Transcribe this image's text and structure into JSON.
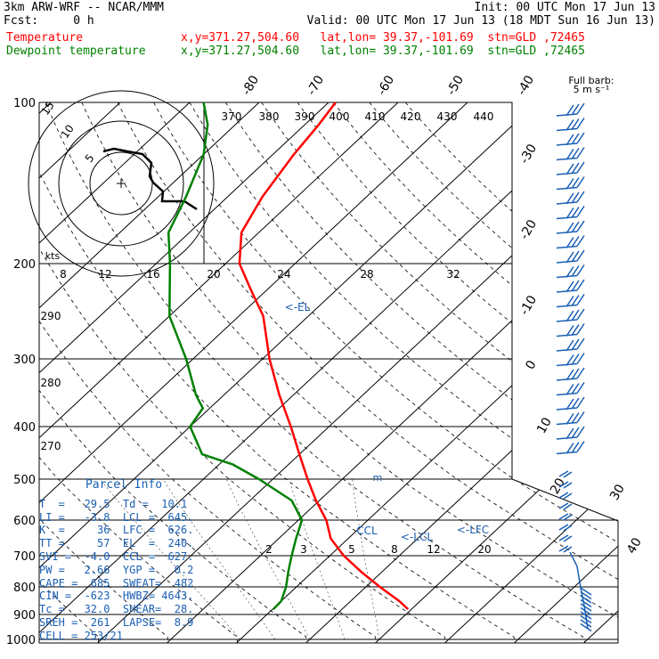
{
  "header": {
    "line1_left": "3km ARW-WRF -- NCAR/MMM",
    "line1_right": "Init: 00 UTC Mon 17 Jun 13",
    "line2_left": "Fcst:     0 h",
    "line2_right": "Valid: 00 UTC Mon 17 Jun 13 (18 MDT Sun 16 Jun 13)",
    "temp_label": "Temperature",
    "temp_loc": "x,y=371.27,504.60   lat,lon= 39.37,-101.69  stn=GLD ,72465",
    "dew_label": "Dewpoint temperature",
    "dew_loc": "x,y=371.27,504.60   lat,lon= 39.37,-101.69  stn=GLD ,72465"
  },
  "wind_key": {
    "title": "Full barb:",
    "value": "5 m s⁻¹"
  },
  "parcel_info": {
    "title": "Parcel Info",
    "rows": [
      "T  =   29.5  Td =  10.1",
      "LI =   -3.8  LCL =  645.",
      "K  =     36  LFC =  626.",
      "TT =     57  EL  =  240.",
      "SVI =  -4.0  CCL =  627.",
      "PW =   2.66  YGP =   0.2",
      "CAPE =  685  SWEAT=  482",
      "CIN =  -623  HWBZ= 4643.",
      "Tc =   32.0  SHEAR=  28.",
      "SREH =  261  LAPSE=  8.9",
      "CELL = 253/21"
    ]
  },
  "annotations": {
    "el": "<-EL",
    "lcl": "<-LCL",
    "lfc": "<-LFC",
    "ccl": "CCL"
  },
  "hodograph": {
    "unit": "kts",
    "rings": [
      "5",
      "10",
      "15"
    ]
  },
  "colors": {
    "temperature": "#ff0000",
    "dewpoint": "#008000",
    "blue": "#1a5fb4",
    "black": "#000000"
  },
  "chart_data": {
    "type": "line",
    "y_axis": "pressure (hPa)",
    "pressure_ticks": [
      100,
      200,
      300,
      400,
      500,
      600,
      700,
      800,
      900,
      1000
    ],
    "isotherm_labels": [
      "-80",
      "-70",
      "-60",
      "-50",
      "-40",
      "-30",
      "-20",
      "-10",
      "0",
      "10",
      "20",
      "30",
      "40"
    ],
    "theta_labels": [
      "370",
      "380",
      "390",
      "400",
      "410",
      "420",
      "430",
      "440"
    ],
    "theta_left_labels": [
      "290",
      "280",
      "270"
    ],
    "mixing_ratio_labels": [
      "8",
      "12",
      "16",
      "20",
      "24",
      "28",
      "32"
    ],
    "mixing_ratio_low_labels": [
      "2",
      "3",
      "5",
      "8",
      "12",
      "20"
    ],
    "series": [
      {
        "name": "Temperature",
        "points": [
          [
            880,
            29.5
          ],
          [
            850,
            27
          ],
          [
            800,
            22
          ],
          [
            750,
            17
          ],
          [
            700,
            12
          ],
          [
            650,
            7.5
          ],
          [
            600,
            4
          ],
          [
            550,
            -0.5
          ],
          [
            500,
            -5
          ],
          [
            450,
            -10
          ],
          [
            400,
            -15.5
          ],
          [
            350,
            -22
          ],
          [
            300,
            -29
          ],
          [
            250,
            -36.5
          ],
          [
            225,
            -42
          ],
          [
            200,
            -48
          ],
          [
            175,
            -52.5
          ],
          [
            150,
            -55
          ],
          [
            125,
            -57
          ],
          [
            110,
            -58
          ],
          [
            100,
            -59
          ]
        ]
      },
      {
        "name": "Dewpoint temperature",
        "points": [
          [
            880,
            10.1
          ],
          [
            850,
            10
          ],
          [
            800,
            8.5
          ],
          [
            750,
            6.5
          ],
          [
            700,
            4.5
          ],
          [
            650,
            2.5
          ],
          [
            600,
            0.5
          ],
          [
            550,
            -4
          ],
          [
            500,
            -12
          ],
          [
            470,
            -18
          ],
          [
            450,
            -24
          ],
          [
            400,
            -30
          ],
          [
            370,
            -31
          ],
          [
            350,
            -34
          ],
          [
            300,
            -41
          ],
          [
            250,
            -50
          ],
          [
            200,
            -58
          ],
          [
            175,
            -63
          ],
          [
            150,
            -66
          ],
          [
            125,
            -70
          ],
          [
            110,
            -74
          ],
          [
            100,
            -78
          ]
        ]
      }
    ]
  }
}
